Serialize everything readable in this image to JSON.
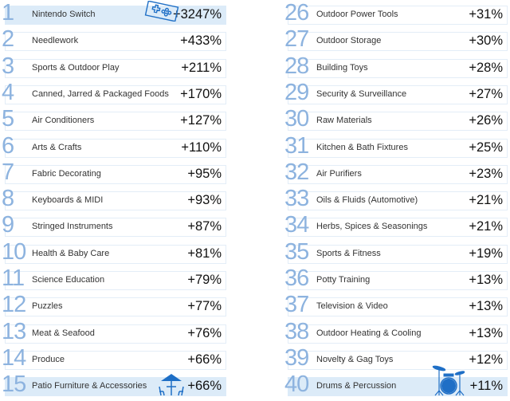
{
  "colors": {
    "number": "#8db3df",
    "highlight": "#dcebf8",
    "icon": "#1f6fc6"
  },
  "left": [
    {
      "rank": "1",
      "label": "Nintendo Switch",
      "value": "+3247%",
      "highlight": true,
      "icon": "game-controller-icon"
    },
    {
      "rank": "2",
      "label": "Needlework",
      "value": "+433%"
    },
    {
      "rank": "3",
      "label": "Sports & Outdoor Play",
      "value": "+211%"
    },
    {
      "rank": "4",
      "label": "Canned, Jarred & Packaged Foods",
      "value": "+170%"
    },
    {
      "rank": "5",
      "label": "Air Conditioners",
      "value": "+127%"
    },
    {
      "rank": "6",
      "label": "Arts & Crafts",
      "value": "+110%"
    },
    {
      "rank": "7",
      "label": "Fabric Decorating",
      "value": "+95%"
    },
    {
      "rank": "8",
      "label": "Keyboards & MIDI",
      "value": "+93%"
    },
    {
      "rank": "9",
      "label": "Stringed Instruments",
      "value": "+87%"
    },
    {
      "rank": "10",
      "label": "Health & Baby Care",
      "value": "+81%"
    },
    {
      "rank": "11",
      "label": "Science Education",
      "value": "+79%"
    },
    {
      "rank": "12",
      "label": "Puzzles",
      "value": "+77%"
    },
    {
      "rank": "13",
      "label": "Meat & Seafood",
      "value": "+76%"
    },
    {
      "rank": "14",
      "label": "Produce",
      "value": "+66%"
    },
    {
      "rank": "15",
      "label": "Patio Furniture & Accessories",
      "value": "+66%",
      "highlight": true,
      "icon": "patio-table-icon"
    }
  ],
  "right": [
    {
      "rank": "26",
      "label": "Outdoor Power Tools",
      "value": "+31%"
    },
    {
      "rank": "27",
      "label": "Outdoor Storage",
      "value": "+30%"
    },
    {
      "rank": "28",
      "label": "Building Toys",
      "value": "+28%"
    },
    {
      "rank": "29",
      "label": "Security & Surveillance",
      "value": "+27%"
    },
    {
      "rank": "30",
      "label": "Raw Materials",
      "value": "+26%"
    },
    {
      "rank": "31",
      "label": "Kitchen & Bath Fixtures",
      "value": "+25%"
    },
    {
      "rank": "32",
      "label": "Air Purifiers",
      "value": "+23%"
    },
    {
      "rank": "33",
      "label": "Oils & Fluids (Automotive)",
      "value": "+21%"
    },
    {
      "rank": "34",
      "label": "Herbs, Spices & Seasonings",
      "value": "+21%"
    },
    {
      "rank": "35",
      "label": "Sports & Fitness",
      "value": "+19%"
    },
    {
      "rank": "36",
      "label": "Potty Training",
      "value": "+13%"
    },
    {
      "rank": "37",
      "label": "Television & Video",
      "value": "+13%"
    },
    {
      "rank": "38",
      "label": "Outdoor Heating & Cooling",
      "value": "+13%"
    },
    {
      "rank": "39",
      "label": "Novelty & Gag Toys",
      "value": "+12%"
    },
    {
      "rank": "40",
      "label": "Drums & Percussion",
      "value": "+11%",
      "highlight": true,
      "icon": "drum-kit-icon"
    }
  ]
}
